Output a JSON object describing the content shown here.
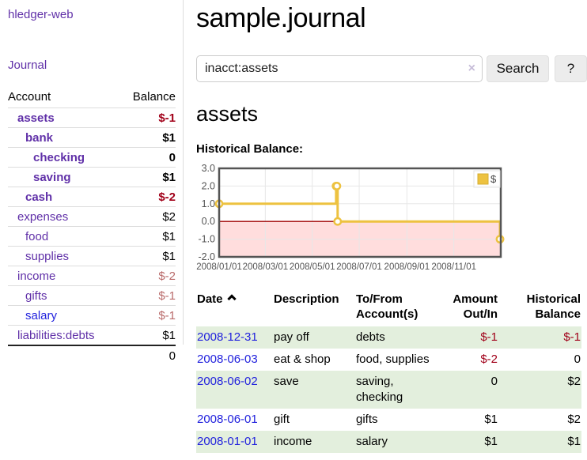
{
  "sidebar": {
    "app_title": "hledger-web",
    "nav": {
      "journal": "Journal"
    },
    "table": {
      "headers": {
        "account": "Account",
        "balance": "Balance"
      },
      "accounts": [
        {
          "name": "assets",
          "balance": "$-1"
        },
        {
          "name": "bank",
          "balance": "$1"
        },
        {
          "name": "checking",
          "balance": "0"
        },
        {
          "name": "saving",
          "balance": "$1"
        },
        {
          "name": "cash",
          "balance": "$-2"
        },
        {
          "name": "expenses",
          "balance": "$2"
        },
        {
          "name": "food",
          "balance": "$1"
        },
        {
          "name": "supplies",
          "balance": "$1"
        },
        {
          "name": "income",
          "balance": "$-2"
        },
        {
          "name": "gifts",
          "balance": "$-1"
        },
        {
          "name": "salary",
          "balance": "$-1"
        },
        {
          "name": "liabilities:debts",
          "balance": "$1"
        }
      ],
      "total": "0"
    }
  },
  "header": {
    "title": "sample.journal"
  },
  "search": {
    "value": "inacct:assets",
    "placeholder": "",
    "clear_icon": "×",
    "button_label": "Search",
    "help_label": "?"
  },
  "main": {
    "account_heading": "assets",
    "chart_label": "Historical Balance:"
  },
  "chart_data": {
    "type": "line",
    "step": true,
    "title": "Historical Balance",
    "series": [
      {
        "name": "$",
        "color": "#edc240",
        "points": [
          [
            "2008-01-01",
            1
          ],
          [
            "2008-06-01",
            2
          ],
          [
            "2008-06-02",
            2
          ],
          [
            "2008-06-03",
            0
          ],
          [
            "2008-12-31",
            -1
          ]
        ]
      }
    ],
    "xlim": [
      "2008-01-01",
      "2009-01-01"
    ],
    "ylim": [
      -2,
      3
    ],
    "y_ticks": [
      "3.0",
      "2.0",
      "1.0",
      "0.0",
      "-1.0",
      "-2.0"
    ],
    "x_ticks": [
      "2008/01/01",
      "2008/03/01",
      "2008/05/01",
      "2008/07/01",
      "2008/09/01",
      "2008/11/01"
    ],
    "legend": {
      "label": "$",
      "position": "top-right"
    },
    "grid": true,
    "negative_region_color": "#ffdddd",
    "zero_line_color": "#a00000",
    "border_color": "#545454",
    "tick_text_color": "#545454"
  },
  "register": {
    "headers": {
      "date": "Date",
      "sort": "ascending",
      "description": "Description",
      "tofrom_line1": "To/From",
      "tofrom_line2": "Account(s)",
      "amount_line1": "Amount",
      "amount_line2": "Out/In",
      "balance_line1": "Historical",
      "balance_line2": "Balance"
    },
    "rows": [
      {
        "date": "2008-12-31",
        "description": "pay off",
        "accounts": "debts",
        "amount": "$-1",
        "balance": "$-1"
      },
      {
        "date": "2008-06-03",
        "description": "eat & shop",
        "accounts": "food, supplies",
        "amount": "$-2",
        "balance": "0"
      },
      {
        "date": "2008-06-02",
        "description": "save",
        "accounts": "saving, checking",
        "amount": "0",
        "balance": "$2"
      },
      {
        "date": "2008-06-01",
        "description": "gift",
        "accounts": "gifts",
        "amount": "$1",
        "balance": "$2"
      },
      {
        "date": "2008-01-01",
        "description": "income",
        "accounts": "salary",
        "amount": "$1",
        "balance": "$1"
      }
    ]
  },
  "colors": {
    "link_purple": "#6030a8",
    "link_blue": "#2222dd",
    "negative_bold": "#a10019",
    "negative_pale": "#b96a6a",
    "row_green": "#e3efdd",
    "chart_line": "#edc240"
  }
}
